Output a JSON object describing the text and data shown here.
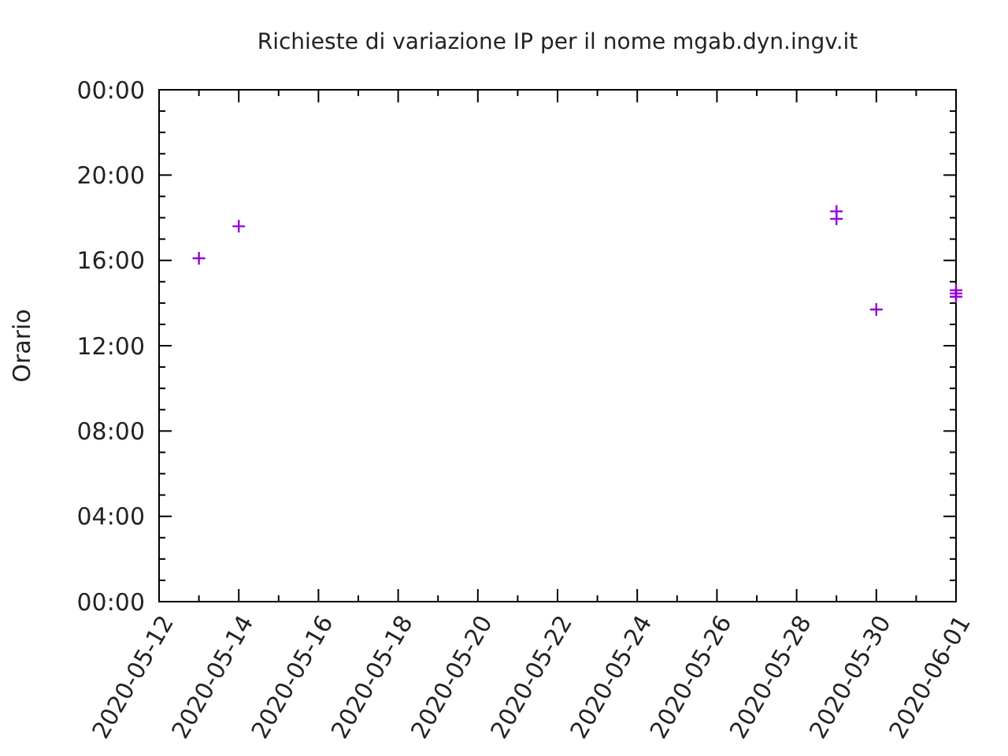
{
  "chart_data": {
    "type": "scatter",
    "title": "Richieste di variazione IP per il nome mgab.dyn.ingv.it",
    "ylabel": "Orario",
    "marker": "cross",
    "grid": false,
    "xlim": [
      "2020-05-12",
      "2020-06-01"
    ],
    "xticks": [
      {
        "value": "2020-05-12",
        "label": "2020-05-12"
      },
      {
        "value": "2020-05-13",
        "label": null
      },
      {
        "value": "2020-05-14",
        "label": "2020-05-14"
      },
      {
        "value": "2020-05-15",
        "label": null
      },
      {
        "value": "2020-05-16",
        "label": "2020-05-16"
      },
      {
        "value": "2020-05-17",
        "label": null
      },
      {
        "value": "2020-05-18",
        "label": "2020-05-18"
      },
      {
        "value": "2020-05-19",
        "label": null
      },
      {
        "value": "2020-05-20",
        "label": "2020-05-20"
      },
      {
        "value": "2020-05-21",
        "label": null
      },
      {
        "value": "2020-05-22",
        "label": "2020-05-22"
      },
      {
        "value": "2020-05-23",
        "label": null
      },
      {
        "value": "2020-05-24",
        "label": "2020-05-24"
      },
      {
        "value": "2020-05-25",
        "label": null
      },
      {
        "value": "2020-05-26",
        "label": "2020-05-26"
      },
      {
        "value": "2020-05-27",
        "label": null
      },
      {
        "value": "2020-05-28",
        "label": "2020-05-28"
      },
      {
        "value": "2020-05-29",
        "label": null
      },
      {
        "value": "2020-05-30",
        "label": "2020-05-30"
      },
      {
        "value": "2020-05-31",
        "label": null
      },
      {
        "value": "2020-06-01",
        "label": "2020-06-01"
      }
    ],
    "ylim": [
      0,
      24
    ],
    "yticks": [
      {
        "value": 0,
        "label": "00:00"
      },
      {
        "value": 1,
        "label": null
      },
      {
        "value": 2,
        "label": null
      },
      {
        "value": 3,
        "label": null
      },
      {
        "value": 4,
        "label": "04:00"
      },
      {
        "value": 5,
        "label": null
      },
      {
        "value": 6,
        "label": null
      },
      {
        "value": 7,
        "label": null
      },
      {
        "value": 8,
        "label": "08:00"
      },
      {
        "value": 9,
        "label": null
      },
      {
        "value": 10,
        "label": null
      },
      {
        "value": 11,
        "label": null
      },
      {
        "value": 12,
        "label": "12:00"
      },
      {
        "value": 13,
        "label": null
      },
      {
        "value": 14,
        "label": null
      },
      {
        "value": 15,
        "label": null
      },
      {
        "value": 16,
        "label": "16:00"
      },
      {
        "value": 17,
        "label": null
      },
      {
        "value": 18,
        "label": null
      },
      {
        "value": 19,
        "label": null
      },
      {
        "value": 20,
        "label": "20:00"
      },
      {
        "value": 21,
        "label": null
      },
      {
        "value": 22,
        "label": null
      },
      {
        "value": 23,
        "label": null
      },
      {
        "value": 24,
        "label": "00:00"
      }
    ],
    "series": [
      {
        "color": "#9400d3",
        "x": [
          "2020-05-13",
          "2020-05-14",
          "2020-05-29",
          "2020-05-29",
          "2020-05-30",
          "2020-06-01",
          "2020-06-01",
          "2020-06-01"
        ],
        "values": [
          16.1,
          17.6,
          18.3,
          17.95,
          13.7,
          14.6,
          14.45,
          14.3
        ]
      }
    ]
  }
}
